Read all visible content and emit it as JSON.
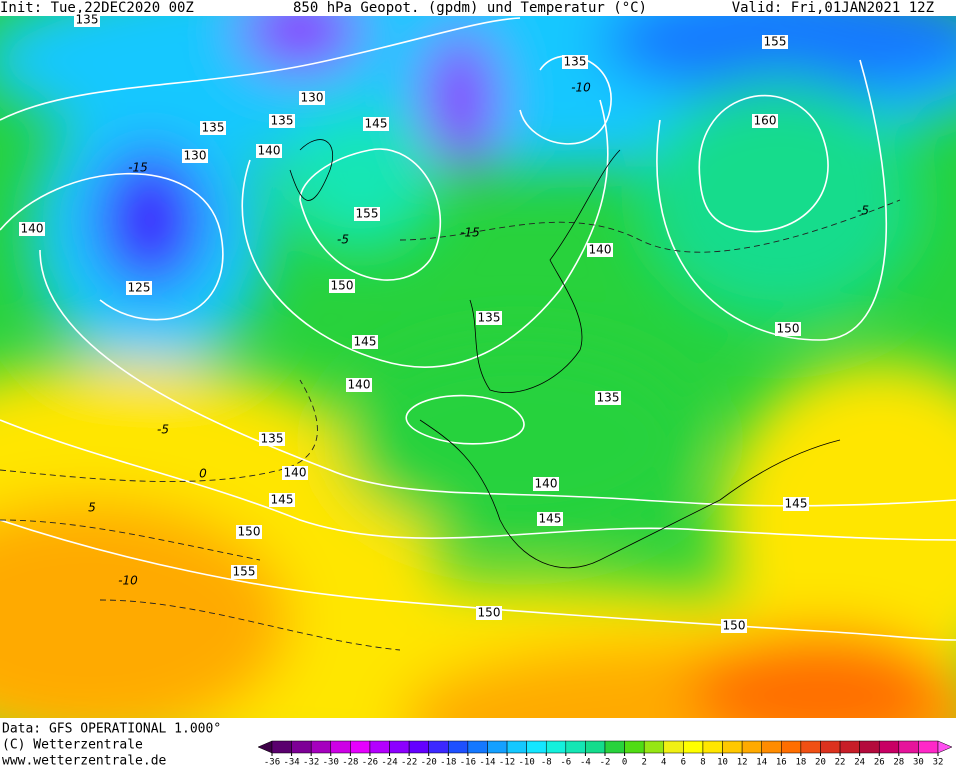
{
  "header": {
    "init": "Init: Tue,22DEC2020 00Z",
    "title": "850 hPa Geopot. (gpdm) und Temperatur (°C)",
    "valid": "Valid: Fri,01JAN2021 12Z"
  },
  "footer": {
    "data": "Data: GFS OPERATIONAL 1.000°",
    "copyright": "(C) Wetterzentrale",
    "url": "www.wetterzentrale.de"
  },
  "colorbar": {
    "ticks": [
      -36,
      -34,
      -32,
      -30,
      -28,
      -26,
      -24,
      -22,
      -20,
      -18,
      -16,
      -14,
      -12,
      -10,
      -8,
      -6,
      -4,
      -2,
      0,
      2,
      4,
      6,
      8,
      10,
      12,
      14,
      16,
      18,
      20,
      22,
      24,
      26,
      28,
      30,
      32
    ],
    "colors": [
      "#3c0046",
      "#5a006e",
      "#7d0096",
      "#a500be",
      "#cd00e6",
      "#e600ff",
      "#b400ff",
      "#8c00ff",
      "#6400ff",
      "#3c28ff",
      "#1e50ff",
      "#1478ff",
      "#14a0ff",
      "#14c8ff",
      "#14e6ff",
      "#14f0dc",
      "#14e6b4",
      "#14dc8c",
      "#28d23c",
      "#50dc14",
      "#96e614",
      "#f0f014",
      "#ffff00",
      "#ffe600",
      "#ffc800",
      "#ffaa00",
      "#ff8c00",
      "#ff6e00",
      "#f05014",
      "#dc321e",
      "#c81e28",
      "#b40a3c",
      "#c80064",
      "#e6149b",
      "#ff28c8",
      "#ff50f0"
    ]
  },
  "geopotential_labels": [
    135,
    130,
    135,
    135,
    140,
    130,
    145,
    155,
    150,
    145,
    140,
    135,
    140,
    145,
    150,
    155,
    125,
    140,
    135,
    160,
    155,
    140,
    150,
    135,
    135,
    140,
    145,
    145,
    150,
    150
  ],
  "temperature_labels": [
    -15,
    -10,
    -15,
    -5,
    -5,
    -5,
    0,
    5,
    -10
  ]
}
